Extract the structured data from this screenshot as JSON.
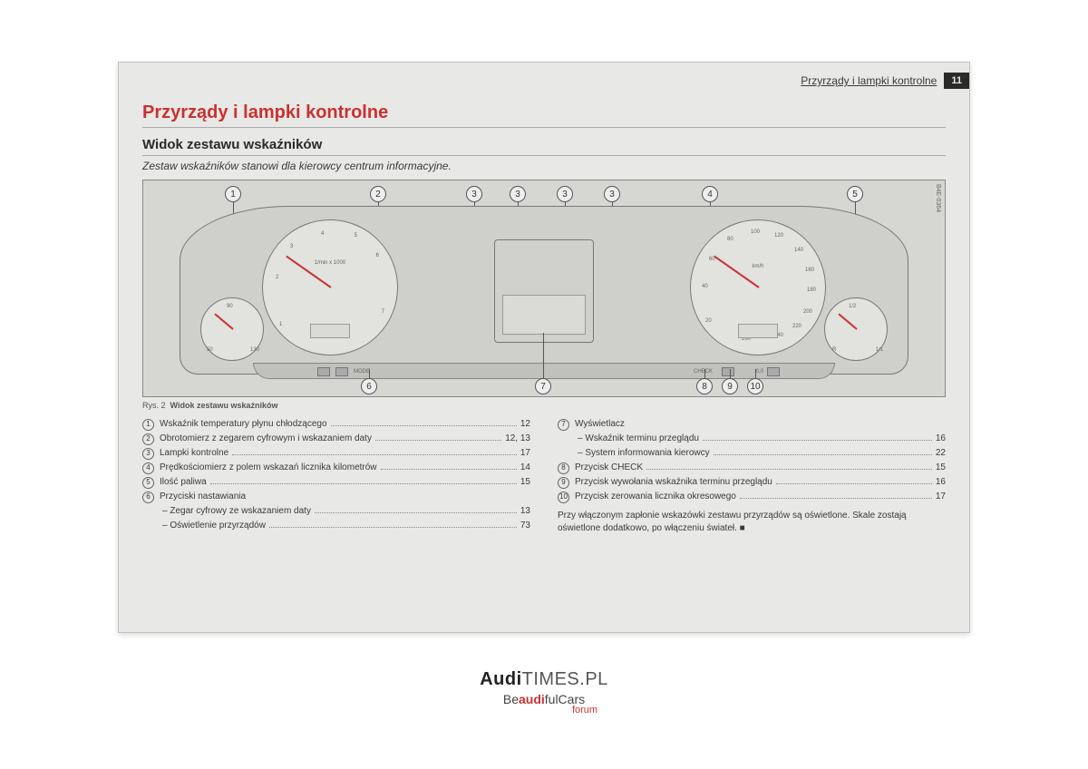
{
  "header": {
    "section": "Przyrządy i lampki kontrolne",
    "pageNumber": "11"
  },
  "title": "Przyrządy i lampki kontrolne",
  "subtitle": "Widok zestawu wskaźników",
  "lead": "Zestaw wskaźników stanowi dla kierowcy centrum informacyjne.",
  "figure": {
    "sideLabel": "B4E-0364",
    "callouts": [
      "1",
      "2",
      "3",
      "3",
      "3",
      "3",
      "4",
      "5",
      "6",
      "7",
      "8",
      "9",
      "10"
    ],
    "tachLabel": "1/min x 1000",
    "speedLabel": "km/h",
    "tempLo": "50",
    "tempHi": "130",
    "fuelLo": "R",
    "fuelHi": "1/1",
    "button6": "MODE",
    "button8": "CHECK",
    "button10": "0,0"
  },
  "figCaption": {
    "prefix": "Rys. 2",
    "text": "Widok zestawu wskaźników"
  },
  "legend": {
    "left": [
      {
        "n": "1",
        "label": "Wskaźnik temperatury płynu chłodzącego",
        "pg": "12"
      },
      {
        "n": "2",
        "label": "Obrotomierz z zegarem cyfrowym i wskazaniem daty",
        "pg": "12, 13"
      },
      {
        "n": "3",
        "label": "Lampki kontrolne",
        "pg": "17"
      },
      {
        "n": "4",
        "label": "Prędkościomierz z polem wskazań licznika kilometrów",
        "pg": "14"
      },
      {
        "n": "5",
        "label": "Ilość paliwa",
        "pg": "15"
      },
      {
        "n": "6",
        "label": "Przyciski nastawiania",
        "pg": ""
      },
      {
        "sub": true,
        "label": "Zegar cyfrowy ze wskazaniem daty",
        "pg": "13"
      },
      {
        "sub": true,
        "label": "Oświetlenie przyrządów",
        "pg": "73"
      }
    ],
    "right": [
      {
        "n": "7",
        "label": "Wyświetlacz",
        "pg": ""
      },
      {
        "sub": true,
        "label": "Wskaźnik terminu przeglądu",
        "pg": "16"
      },
      {
        "sub": true,
        "label": "System informowania kierowcy",
        "pg": "22"
      },
      {
        "n": "8",
        "label": "Przycisk CHECK",
        "pg": "15"
      },
      {
        "n": "9",
        "label": "Przycisk wywołania wskaźnika terminu przeglądu",
        "pg": "16"
      },
      {
        "n": "10",
        "label": "Przycisk zerowania licznika okresowego",
        "pg": "17"
      }
    ],
    "note": "Przy włączonym zapłonie wskazówki zestawu przyrządów są oświetlone. Skale zostają oświetlone dodatkowo, po włączeniu świateł. ■"
  },
  "watermark": {
    "line1a": "Audi",
    "line1b": "TIMES",
    "line1c": ".PL",
    "line2a": "Be",
    "line2b": "audi",
    "line2c": "fulCars",
    "line3": "forum"
  },
  "colors": {
    "pageBg": "#e8e8e6",
    "accent": "#c83232",
    "text": "#3a3a38"
  }
}
